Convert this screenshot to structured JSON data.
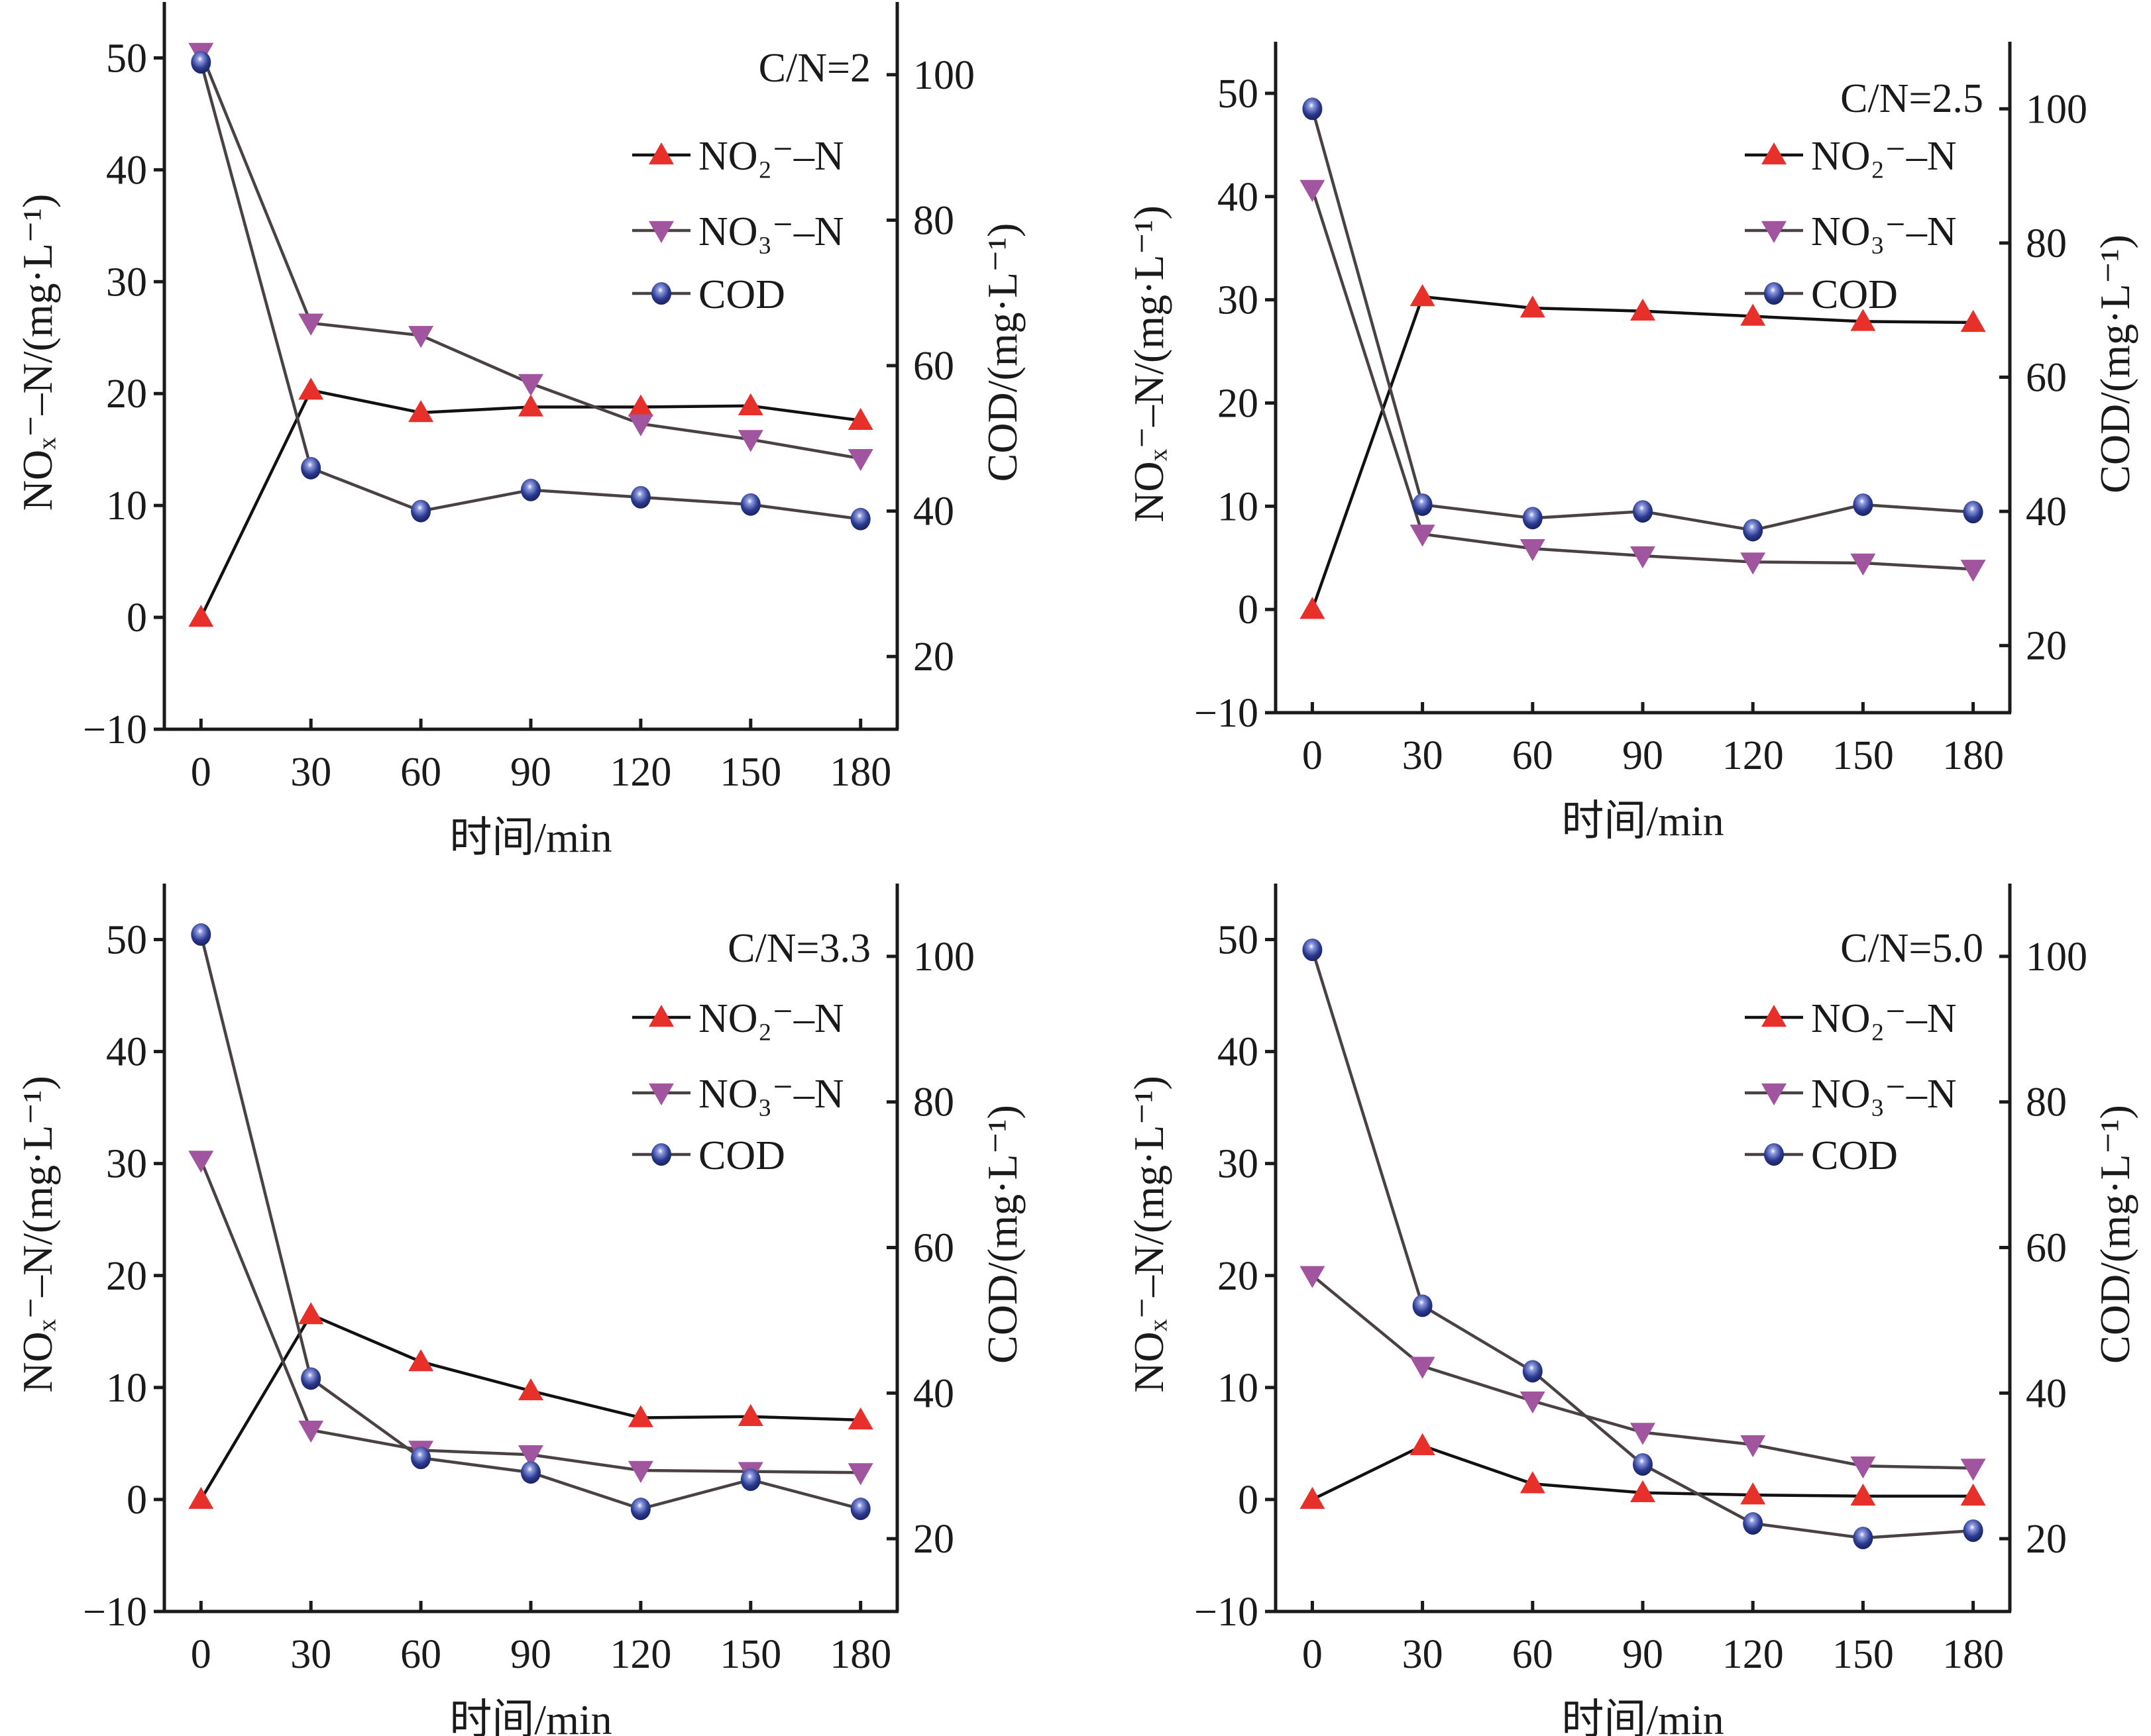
{
  "chart_data": [
    {
      "type": "line",
      "title": "C/N=2",
      "xlabel": "时间/min",
      "ylabel_left": "NOₓ⁻–N/(mg·L⁻¹)",
      "ylabel_right": "COD/(mg·L⁻¹)",
      "x": [
        0,
        30,
        60,
        90,
        120,
        150,
        180
      ],
      "xlim": [
        -10,
        190
      ],
      "ylim_left": [
        -10,
        55
      ],
      "ylim_right": [
        10,
        110
      ],
      "xticks": [
        "0",
        "30",
        "60",
        "90",
        "120",
        "150",
        "180"
      ],
      "yticks_left": [
        "−10",
        "0",
        "10",
        "20",
        "30",
        "40",
        "50"
      ],
      "yticks_right": [
        "20",
        "40",
        "60",
        "80",
        "100"
      ],
      "legend_position": "top-right",
      "series": [
        {
          "name": "NO₂⁻–N",
          "axis": "left",
          "marker": "triangle-up",
          "marker_color": "#e8302a",
          "line_color": "#111111",
          "values": [
            0,
            20.3,
            18.3,
            18.8,
            18.8,
            18.9,
            17.6
          ]
        },
        {
          "name": "NO₃⁻–N",
          "axis": "left",
          "marker": "triangle-down",
          "marker_color": "#a0559e",
          "line_color": "#4a4242",
          "values": [
            50.5,
            26.3,
            25.2,
            20.9,
            17.3,
            15.9,
            14.2
          ]
        },
        {
          "name": "COD",
          "axis": "right",
          "marker": "sphere",
          "marker_color": "#2b3a8f",
          "line_color": "#4a4242",
          "values": [
            101.7,
            45.9,
            40.0,
            42.9,
            41.9,
            40.9,
            38.9
          ]
        }
      ]
    },
    {
      "type": "line",
      "title": "C/N=2.5",
      "xlabel": "时间/min",
      "ylabel_left": "NOₓ⁻–N/(mg·L⁻¹)",
      "ylabel_right": "COD/(mg·L⁻¹)",
      "x": [
        0,
        30,
        60,
        90,
        120,
        150,
        180
      ],
      "xlim": [
        -10,
        190
      ],
      "ylim_left": [
        -10,
        55
      ],
      "ylim_right": [
        10,
        110
      ],
      "xticks": [
        "0",
        "30",
        "60",
        "90",
        "120",
        "150",
        "180"
      ],
      "yticks_left": [
        "−10",
        "0",
        "10",
        "20",
        "30",
        "40",
        "50"
      ],
      "yticks_right": [
        "20",
        "40",
        "60",
        "80",
        "100"
      ],
      "legend_position": "top-right",
      "series": [
        {
          "name": "NO₂⁻–N",
          "axis": "left",
          "marker": "triangle-up",
          "marker_color": "#e8302a",
          "line_color": "#111111",
          "values": [
            0,
            30.3,
            29.2,
            28.9,
            28.4,
            27.9,
            27.8
          ]
        },
        {
          "name": "NO₃⁻–N",
          "axis": "left",
          "marker": "triangle-down",
          "marker_color": "#a0559e",
          "line_color": "#4a4242",
          "values": [
            40.7,
            7.3,
            5.9,
            5.2,
            4.6,
            4.5,
            3.9
          ]
        },
        {
          "name": "COD",
          "axis": "right",
          "marker": "sphere",
          "marker_color": "#2b3a8f",
          "line_color": "#4a4242",
          "values": [
            100.0,
            41.0,
            39.0,
            40.0,
            37.2,
            41.0,
            39.9
          ]
        }
      ]
    },
    {
      "type": "line",
      "title": "C/N=3.3",
      "xlabel": "时间/min",
      "ylabel_left": "NOₓ⁻–N/(mg·L⁻¹)",
      "ylabel_right": "COD/(mg·L⁻¹)",
      "x": [
        0,
        30,
        60,
        90,
        120,
        150,
        180
      ],
      "xlim": [
        -10,
        190
      ],
      "ylim_left": [
        -10,
        55
      ],
      "ylim_right": [
        10,
        110
      ],
      "xticks": [
        "0",
        "30",
        "60",
        "90",
        "120",
        "150",
        "180"
      ],
      "yticks_left": [
        "−10",
        "0",
        "10",
        "20",
        "30",
        "40",
        "50"
      ],
      "yticks_right": [
        "20",
        "40",
        "60",
        "80",
        "100"
      ],
      "legend_position": "top-right",
      "series": [
        {
          "name": "NO₂⁻–N",
          "axis": "left",
          "marker": "triangle-up",
          "marker_color": "#e8302a",
          "line_color": "#111111",
          "values": [
            0,
            16.5,
            12.3,
            9.7,
            7.3,
            7.4,
            7.1
          ]
        },
        {
          "name": "NO₃⁻–N",
          "axis": "left",
          "marker": "triangle-down",
          "marker_color": "#a0559e",
          "line_color": "#4a4242",
          "values": [
            30.3,
            6.2,
            4.4,
            4.0,
            2.6,
            2.5,
            2.4
          ]
        },
        {
          "name": "COD",
          "axis": "right",
          "marker": "sphere",
          "marker_color": "#2b3a8f",
          "line_color": "#4a4242",
          "values": [
            103.0,
            42.0,
            31.1,
            29.1,
            24.1,
            28.1,
            24.1
          ]
        }
      ]
    },
    {
      "type": "line",
      "title": "C/N=5.0",
      "xlabel": "时间/min",
      "ylabel_left": "NOₓ⁻–N/(mg·L⁻¹)",
      "ylabel_right": "COD/(mg·L⁻¹)",
      "x": [
        0,
        30,
        60,
        90,
        120,
        150,
        180
      ],
      "xlim": [
        -10,
        190
      ],
      "ylim_left": [
        -10,
        55
      ],
      "ylim_right": [
        10,
        110
      ],
      "xticks": [
        "0",
        "30",
        "60",
        "90",
        "120",
        "150",
        "180"
      ],
      "yticks_left": [
        "−10",
        "0",
        "10",
        "20",
        "30",
        "40",
        "50"
      ],
      "yticks_right": [
        "20",
        "40",
        "60",
        "80",
        "100"
      ],
      "legend_position": "top-right",
      "series": [
        {
          "name": "NO₂⁻–N",
          "axis": "left",
          "marker": "triangle-up",
          "marker_color": "#e8302a",
          "line_color": "#111111",
          "values": [
            0,
            4.8,
            1.4,
            0.6,
            0.4,
            0.3,
            0.3
          ]
        },
        {
          "name": "NO₃⁻–N",
          "axis": "left",
          "marker": "triangle-down",
          "marker_color": "#a0559e",
          "line_color": "#4a4242",
          "values": [
            20.0,
            11.9,
            8.8,
            6.0,
            4.9,
            3.0,
            2.8
          ]
        },
        {
          "name": "COD",
          "axis": "right",
          "marker": "sphere",
          "marker_color": "#2b3a8f",
          "line_color": "#4a4242",
          "values": [
            100.9,
            52.0,
            43.0,
            30.2,
            22.1,
            20.1,
            21.1
          ]
        }
      ]
    }
  ]
}
